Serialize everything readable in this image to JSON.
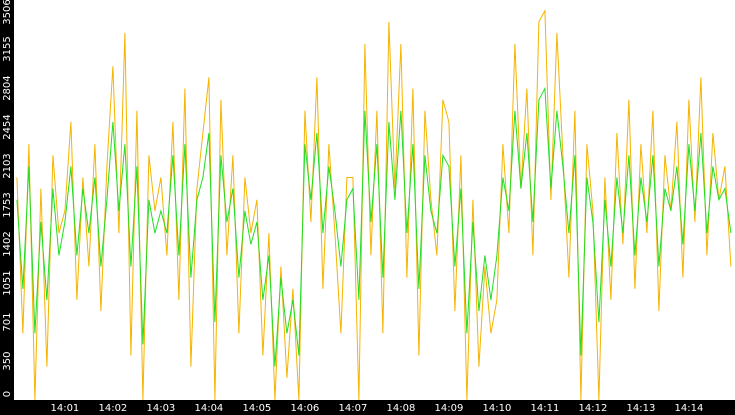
{
  "chart_data": {
    "type": "line",
    "x": [
      0,
      0.125,
      0.25,
      0.375,
      0.5,
      0.625,
      0.75,
      0.875,
      1,
      1.125,
      1.25,
      1.375,
      1.5,
      1.625,
      1.75,
      1.875,
      2,
      2.125,
      2.25,
      2.375,
      2.5,
      2.625,
      2.75,
      2.875,
      3,
      3.125,
      3.25,
      3.375,
      3.5,
      3.625,
      3.75,
      3.875,
      4,
      4.125,
      4.25,
      4.375,
      4.5,
      4.625,
      4.75,
      4.875,
      5,
      5.125,
      5.25,
      5.375,
      5.5,
      5.625,
      5.75,
      5.875,
      6,
      6.125,
      6.25,
      6.375,
      6.5,
      6.625,
      6.75,
      6.875,
      7,
      7.125,
      7.25,
      7.375,
      7.5,
      7.625,
      7.75,
      7.875,
      8,
      8.125,
      8.25,
      8.375,
      8.5,
      8.625,
      8.75,
      8.875,
      9,
      9.125,
      9.25,
      9.375,
      9.5,
      9.625,
      9.75,
      9.875,
      10,
      10.125,
      10.25,
      10.375,
      10.5,
      10.625,
      10.75,
      10.875,
      11,
      11.125,
      11.25,
      11.375,
      11.5,
      11.625,
      11.75,
      11.875,
      12,
      12.125,
      12.25,
      12.375,
      12.5,
      12.625,
      12.75,
      12.875,
      13,
      13.125,
      13.25,
      13.375,
      13.5,
      13.625,
      13.75,
      13.875,
      14,
      14.125,
      14.25,
      14.375,
      14.5,
      14.625,
      14.75,
      14.875
    ],
    "series": [
      {
        "color": "#f5b400",
        "values": [
          2000,
          600,
          2300,
          0,
          1900,
          300,
          2200,
          1500,
          1700,
          2500,
          900,
          2000,
          1200,
          2300,
          800,
          2100,
          3000,
          1500,
          3300,
          400,
          2600,
          0,
          2200,
          1700,
          2000,
          1300,
          2500,
          900,
          2800,
          300,
          1900,
          2400,
          2900,
          0,
          2700,
          1300,
          2200,
          600,
          2000,
          1500,
          1800,
          400,
          1500,
          0,
          1200,
          200,
          1000,
          0,
          2600,
          1600,
          2900,
          1000,
          2300,
          1500,
          600,
          2000,
          2000,
          0,
          3200,
          1300,
          2600,
          600,
          3400,
          1900,
          3200,
          1100,
          2800,
          400,
          2600,
          1800,
          1300,
          2700,
          2500,
          800,
          2200,
          0,
          1800,
          300,
          1200,
          600,
          900,
          2300,
          1500,
          3200,
          1900,
          2800,
          1300,
          3400,
          3500,
          1800,
          3300,
          2200,
          1100,
          2600,
          0,
          2300,
          1700,
          0,
          2000,
          900,
          2400,
          1400,
          2700,
          1000,
          2300,
          1500,
          2600,
          800,
          2200,
          1700,
          2500,
          1100,
          2700,
          1600,
          2900,
          1300,
          2400,
          1800,
          2100,
          1200
        ]
      },
      {
        "color": "#22dd22",
        "values": [
          1800,
          1000,
          2100,
          600,
          1600,
          900,
          1900,
          1300,
          1600,
          2100,
          1300,
          1900,
          1500,
          2000,
          1200,
          1800,
          2500,
          1700,
          2300,
          1200,
          2100,
          500,
          1800,
          1500,
          1700,
          1500,
          2200,
          1300,
          2300,
          1100,
          1800,
          2000,
          2400,
          700,
          2200,
          1600,
          1900,
          1100,
          1700,
          1400,
          1600,
          900,
          1300,
          300,
          1100,
          600,
          900,
          400,
          2300,
          1800,
          2400,
          1500,
          2100,
          1700,
          1200,
          1800,
          1900,
          900,
          2600,
          1600,
          2300,
          1100,
          2500,
          1800,
          2600,
          1500,
          2300,
          1000,
          2200,
          1700,
          1500,
          2200,
          2100,
          1200,
          1900,
          600,
          1600,
          800,
          1300,
          900,
          1300,
          2000,
          1700,
          2600,
          1900,
          2400,
          1600,
          2700,
          2800,
          1900,
          2600,
          2100,
          1500,
          2200,
          400,
          2000,
          1600,
          700,
          1800,
          1200,
          2000,
          1500,
          2200,
          1300,
          2000,
          1600,
          2200,
          1200,
          1900,
          1700,
          2100,
          1400,
          2300,
          1700,
          2400,
          1500,
          2100,
          1800,
          1900,
          1500
        ]
      }
    ],
    "ylim": [
      0,
      3506
    ],
    "yticks": [
      0,
      350,
      701,
      1051,
      1402,
      1753,
      2103,
      2454,
      2804,
      3155,
      3506
    ],
    "xlim": [
      -0.06,
      14.96
    ],
    "xticks": [
      {
        "value": 1,
        "label": "14:01"
      },
      {
        "value": 2,
        "label": "14:02"
      },
      {
        "value": 3,
        "label": "14:03"
      },
      {
        "value": 4,
        "label": "14:04"
      },
      {
        "value": 5,
        "label": "14:05"
      },
      {
        "value": 6,
        "label": "14:06"
      },
      {
        "value": 7,
        "label": "14:07"
      },
      {
        "value": 8,
        "label": "14:08"
      },
      {
        "value": 9,
        "label": "14:09"
      },
      {
        "value": 10,
        "label": "14:10"
      },
      {
        "value": 11,
        "label": "14:11"
      },
      {
        "value": 12,
        "label": "14:12"
      },
      {
        "value": 13,
        "label": "14:13"
      },
      {
        "value": 14,
        "label": "14:14"
      }
    ]
  }
}
